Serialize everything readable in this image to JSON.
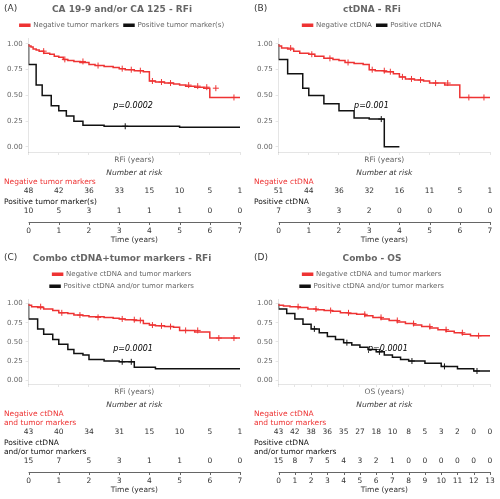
{
  "chart_data": [
    {
      "type": "line",
      "panel_label": "(A)",
      "title": "CA 19-9 and/or CA 125 - RFi",
      "xlabel": "RFi (years)",
      "xlim": [
        0,
        7
      ],
      "xticks": [
        0,
        1,
        2,
        3,
        4,
        5,
        6,
        7
      ],
      "ylim": [
        -0.05,
        1.05
      ],
      "yticks": [
        {
          "value": 0,
          "label": "0.00"
        },
        {
          "value": 0.25,
          "label": "0.25"
        },
        {
          "value": 0.5,
          "label": "0.50"
        },
        {
          "value": 0.75,
          "label": "0.75"
        },
        {
          "value": 1,
          "label": "1.00"
        }
      ],
      "tick_labels": "y",
      "grid": false,
      "legend": "top",
      "series": [
        {
          "name": "Negative tumor markers",
          "color": "#EE3333",
          "line_style": "step",
          "x": [
            0,
            0.08,
            0.15,
            0.25,
            0.35,
            0.5,
            0.7,
            0.85,
            1.0,
            1.15,
            1.3,
            1.5,
            1.7,
            2.0,
            2.2,
            2.5,
            2.8,
            3.0,
            3.2,
            3.5,
            3.8,
            4.0,
            4.2,
            4.5,
            4.8,
            5.0,
            5.2,
            5.5,
            5.8,
            6.0,
            6.5,
            7.0
          ],
          "values": [
            1.0,
            0.98,
            0.97,
            0.95,
            0.94,
            0.93,
            0.91,
            0.9,
            0.88,
            0.87,
            0.85,
            0.84,
            0.83,
            0.82,
            0.8,
            0.79,
            0.78,
            0.77,
            0.76,
            0.75,
            0.74,
            0.73,
            0.64,
            0.63,
            0.62,
            0.61,
            0.6,
            0.59,
            0.58,
            0.57,
            0.48,
            0.48
          ],
          "censor": {
            "marker": "cross",
            "x": [
              0.5,
              1.2,
              1.8,
              2.3,
              3.1,
              3.4,
              3.7,
              4.1,
              4.4,
              4.7,
              5.3,
              5.6,
              5.9,
              6.2,
              6.8
            ],
            "values": [
              0.93,
              0.85,
              0.83,
              0.79,
              0.76,
              0.75,
              0.74,
              0.64,
              0.63,
              0.62,
              0.6,
              0.59,
              0.58,
              0.57,
              0.48
            ]
          }
        },
        {
          "name": "Positive tumor marker(s)",
          "color": "#111111",
          "line_style": "step",
          "x": [
            0,
            0.25,
            0.45,
            0.75,
            1.0,
            1.25,
            1.5,
            1.8,
            2.0,
            2.5,
            3.0,
            5.0,
            5.2,
            7.0
          ],
          "values": [
            1.0,
            0.8,
            0.6,
            0.5,
            0.4,
            0.35,
            0.3,
            0.25,
            0.21,
            0.21,
            0.2,
            0.2,
            0.19,
            0.19
          ],
          "censor": {
            "marker": "cross",
            "x": [
              3.2
            ],
            "values": [
              0.2
            ]
          }
        }
      ],
      "annotations": [
        {
          "text": "p=0.0002",
          "x": 2.8,
          "y": 0.38
        }
      ],
      "risk_table": {
        "title": "Number at risk",
        "xlabel": "Time (years)",
        "times": [
          0,
          1,
          2,
          3,
          4,
          5,
          6,
          7
        ],
        "rows": [
          {
            "name": "Negative tumor markers",
            "values": [
              48,
              42,
              36,
              33,
              15,
              10,
              5,
              1
            ]
          },
          {
            "name": "Positive tumor marker(s)",
            "values": [
              10,
              5,
              3,
              1,
              1,
              1,
              0,
              0
            ]
          }
        ]
      }
    },
    {
      "type": "line",
      "panel_label": "(B)",
      "title": "ctDNA - RFi",
      "xlabel": "RFi (years)",
      "xlim": [
        0,
        7
      ],
      "xticks": [
        0,
        1,
        2,
        3,
        4,
        5,
        6,
        7
      ],
      "ylim": [
        -0.05,
        1.05
      ],
      "yticks": [
        {
          "value": 0,
          "label": "0.00"
        },
        {
          "value": 0.25,
          "label": "0.25"
        },
        {
          "value": 0.5,
          "label": "0.50"
        },
        {
          "value": 0.75,
          "label": "0.75"
        },
        {
          "value": 1,
          "label": "1.00"
        }
      ],
      "tick_labels": "y",
      "grid": false,
      "legend": "top",
      "series": [
        {
          "name": "Negative ctDNA",
          "color": "#EE3333",
          "line_style": "step",
          "x": [
            0,
            0.1,
            0.3,
            0.5,
            0.7,
            1.0,
            1.2,
            1.5,
            1.8,
            2.0,
            2.2,
            2.5,
            2.8,
            3.0,
            3.2,
            3.5,
            3.8,
            4.0,
            4.2,
            4.5,
            4.8,
            5.0,
            5.5,
            6.0,
            6.5,
            7.0
          ],
          "values": [
            1.0,
            0.98,
            0.96,
            0.95,
            0.93,
            0.91,
            0.9,
            0.88,
            0.86,
            0.85,
            0.84,
            0.82,
            0.81,
            0.8,
            0.75,
            0.74,
            0.73,
            0.71,
            0.68,
            0.66,
            0.65,
            0.64,
            0.62,
            0.6,
            0.48,
            0.48
          ],
          "censor": {
            "marker": "cross",
            "x": [
              0.4,
              1.1,
              1.7,
              2.3,
              3.1,
              3.5,
              3.7,
              4.1,
              4.4,
              4.7,
              5.2,
              5.6,
              6.3,
              6.8
            ],
            "values": [
              0.96,
              0.9,
              0.86,
              0.82,
              0.75,
              0.74,
              0.73,
              0.68,
              0.66,
              0.65,
              0.62,
              0.62,
              0.48,
              0.48
            ]
          }
        },
        {
          "name": "Positive ctDNA",
          "color": "#111111",
          "line_style": "step",
          "x": [
            0,
            0.3,
            0.8,
            1.0,
            1.5,
            2.0,
            2.5,
            3.0,
            3.5,
            4.0
          ],
          "values": [
            1.0,
            0.85,
            0.71,
            0.57,
            0.5,
            0.42,
            0.35,
            0.28,
            0.27,
            0.0
          ],
          "censor": {
            "marker": "cross",
            "x": [
              3.4
            ],
            "values": [
              0.27
            ]
          }
        }
      ],
      "annotations": [
        {
          "text": "p=0.001",
          "x": 2.5,
          "y": 0.38
        }
      ],
      "risk_table": {
        "title": "Number at risk",
        "xlabel": "Time (years)",
        "times": [
          0,
          1,
          2,
          3,
          4,
          5,
          6,
          7
        ],
        "rows": [
          {
            "name": "Negative ctDNA",
            "values": [
              51,
              44,
              36,
              32,
              16,
              11,
              5,
              1
            ]
          },
          {
            "name": "Positive ctDNA",
            "values": [
              7,
              3,
              3,
              2,
              0,
              0,
              0,
              0
            ]
          }
        ]
      }
    },
    {
      "type": "line",
      "panel_label": "(C)",
      "title": "Combo ctDNA+tumor markers - RFi",
      "xlabel": "RFi (years)",
      "xlim": [
        0,
        7
      ],
      "xticks": [
        0,
        1,
        2,
        3,
        4,
        5,
        6,
        7
      ],
      "ylim": [
        -0.05,
        1.05
      ],
      "yticks": [
        {
          "value": 0,
          "label": "0.00"
        },
        {
          "value": 0.25,
          "label": "0.25"
        },
        {
          "value": 0.5,
          "label": "0.50"
        },
        {
          "value": 0.75,
          "label": "0.75"
        },
        {
          "value": 1,
          "label": "1.00"
        }
      ],
      "tick_labels": "y",
      "grid": false,
      "legend": "top",
      "series": [
        {
          "name": "Negative ctDNA and tumor markers",
          "color": "#EE3333",
          "line_style": "step",
          "x": [
            0,
            0.1,
            0.3,
            0.5,
            0.8,
            1.0,
            1.3,
            1.5,
            1.8,
            2.0,
            2.5,
            2.8,
            3.0,
            3.2,
            3.5,
            3.8,
            4.0,
            4.2,
            4.5,
            4.8,
            5.0,
            5.5,
            6.0,
            6.5,
            7.0
          ],
          "values": [
            1.0,
            0.98,
            0.96,
            0.95,
            0.93,
            0.91,
            0.88,
            0.87,
            0.85,
            0.84,
            0.83,
            0.82,
            0.81,
            0.8,
            0.79,
            0.78,
            0.74,
            0.72,
            0.71,
            0.7,
            0.69,
            0.65,
            0.63,
            0.55,
            0.55
          ],
          "censor": {
            "marker": "cross",
            "x": [
              0.4,
              1.1,
              1.7,
              2.3,
              3.1,
              3.5,
              3.7,
              4.1,
              4.4,
              4.7,
              5.2,
              5.6,
              6.3,
              6.8
            ],
            "values": [
              0.96,
              0.88,
              0.85,
              0.82,
              0.8,
              0.79,
              0.78,
              0.72,
              0.71,
              0.7,
              0.65,
              0.65,
              0.55,
              0.55
            ]
          }
        },
        {
          "name": "Positive ctDNA and/or tumor markers",
          "color": "#111111",
          "line_style": "step",
          "x": [
            0,
            0.3,
            0.5,
            0.8,
            1.0,
            1.3,
            1.5,
            1.8,
            2.0,
            2.5,
            3.0,
            3.2,
            3.5,
            4.0,
            4.2,
            5.0,
            7.0
          ],
          "values": [
            1.0,
            0.8,
            0.67,
            0.6,
            0.53,
            0.47,
            0.4,
            0.35,
            0.33,
            0.27,
            0.25,
            0.24,
            0.24,
            0.17,
            0.17,
            0.15,
            0.15
          ],
          "censor": {
            "marker": "cross",
            "x": [
              3.1,
              3.4
            ],
            "values": [
              0.24,
              0.24
            ]
          }
        }
      ],
      "annotations": [
        {
          "text": "p=0.0001",
          "x": 2.8,
          "y": 0.38
        }
      ],
      "risk_table": {
        "title": "Number at risk",
        "xlabel": "Time (years)",
        "times": [
          0,
          1,
          2,
          3,
          4,
          5,
          6,
          7
        ],
        "rows": [
          {
            "name": "Negative ctDNA\nand tumor markers",
            "values": [
              43,
              40,
              34,
              31,
              15,
              10,
              5,
              1
            ]
          },
          {
            "name": "Positive ctDNA\nand/or tumor markers",
            "values": [
              15,
              7,
              5,
              3,
              1,
              1,
              0,
              0
            ]
          }
        ]
      }
    },
    {
      "type": "line",
      "panel_label": "(D)",
      "title": "Combo - OS",
      "xlabel": "OS (years)",
      "xlim": [
        0,
        13
      ],
      "xticks": [
        0,
        1,
        2,
        3,
        4,
        5,
        6,
        7,
        8,
        9,
        10,
        11,
        12,
        13
      ],
      "ylim": [
        -0.05,
        1.05
      ],
      "yticks": [
        {
          "value": 0,
          "label": "0.00"
        },
        {
          "value": 0.25,
          "label": "0.25"
        },
        {
          "value": 0.5,
          "label": "0.50"
        },
        {
          "value": 0.75,
          "label": "0.75"
        },
        {
          "value": 1,
          "label": "1.00"
        }
      ],
      "tick_labels": "y",
      "grid": false,
      "legend": "top",
      "series": [
        {
          "name": "Negative ctDNA and tumor markers",
          "color": "#EE3333",
          "line_style": "step",
          "x": [
            0,
            0.3,
            0.7,
            1.2,
            1.8,
            2.3,
            2.8,
            3.3,
            3.8,
            4.3,
            4.8,
            5.3,
            5.8,
            6.3,
            6.8,
            7.3,
            7.8,
            8.3,
            8.8,
            9.3,
            9.8,
            10.3,
            10.8,
            11.3,
            11.8,
            12.3,
            13.0
          ],
          "values": [
            1.0,
            0.98,
            0.97,
            0.96,
            0.95,
            0.93,
            0.92,
            0.91,
            0.9,
            0.88,
            0.87,
            0.86,
            0.84,
            0.82,
            0.8,
            0.78,
            0.76,
            0.74,
            0.72,
            0.7,
            0.68,
            0.66,
            0.64,
            0.62,
            0.6,
            0.58,
            0.58
          ],
          "censor": {
            "marker": "cross",
            "x": [
              1.2,
              2.3,
              3.2,
              4.3,
              5.3,
              6.3,
              7.3,
              8.3,
              9.3,
              10.3,
              11.3,
              12.3
            ],
            "values": [
              0.96,
              0.93,
              0.91,
              0.88,
              0.86,
              0.82,
              0.78,
              0.74,
              0.7,
              0.66,
              0.62,
              0.58
            ]
          }
        },
        {
          "name": "Positive ctDNA and/or tumor markers",
          "color": "#111111",
          "line_style": "step",
          "x": [
            0,
            0.5,
            1.0,
            1.5,
            2.0,
            2.5,
            3.0,
            3.5,
            4.0,
            4.5,
            5.0,
            5.5,
            6.0,
            6.5,
            7.0,
            7.5,
            8.0,
            9.0,
            10.0,
            11.0,
            12.0,
            13.0
          ],
          "values": [
            1.0,
            0.93,
            0.87,
            0.8,
            0.73,
            0.67,
            0.62,
            0.57,
            0.53,
            0.49,
            0.46,
            0.43,
            0.4,
            0.37,
            0.33,
            0.3,
            0.27,
            0.25,
            0.22,
            0.18,
            0.15,
            0.12
          ],
          "censor": {
            "marker": "cross",
            "x": [
              2.2,
              4.2,
              6.2,
              8.2,
              10.2,
              12.2
            ],
            "values": [
              0.67,
              0.49,
              0.37,
              0.25,
              0.18,
              0.12
            ]
          }
        }
      ],
      "annotations": [
        {
          "text": "p=0.0001",
          "x": 5.5,
          "y": 0.38
        }
      ],
      "risk_table": {
        "title": "Number at risk",
        "xlabel": "Time (years)",
        "times": [
          0,
          1,
          2,
          3,
          4,
          5,
          6,
          7,
          8,
          9,
          10,
          11,
          12,
          13
        ],
        "rows": [
          {
            "name": "Negative ctDNA\nand tumor markers",
            "values": [
              43,
              42,
              38,
              36,
              35,
              27,
              18,
              10,
              8,
              5,
              3,
              2,
              0,
              0
            ]
          },
          {
            "name": "Positive ctDNA\nand/or tumor markers",
            "values": [
              15,
              8,
              7,
              5,
              4,
              3,
              2,
              1,
              0,
              0,
              0,
              0,
              0,
              0
            ]
          }
        ]
      }
    }
  ]
}
